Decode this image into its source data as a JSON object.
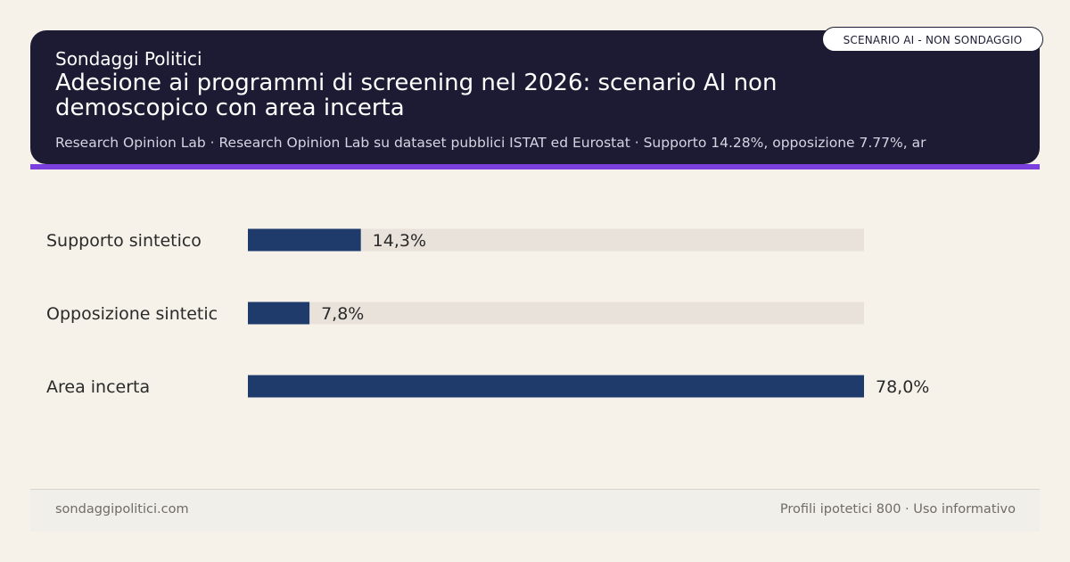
{
  "header": {
    "brand": "Sondaggi Politici",
    "title": "Adesione ai programmi di screening nel 2026: scenario AI non demoscopico con area incerta",
    "subtitle": "Research Opinion Lab · Research Opinion Lab su dataset pubblici ISTAT ed Eurostat · Supporto 14.28%, opposizione 7.77%, ar"
  },
  "badge": {
    "label": "SCENARIO AI - NON SONDAGGIO"
  },
  "footer": {
    "site": "sondaggipolitici.com",
    "note": "Profili ipotetici 800 · Uso informativo"
  },
  "colors": {
    "header_bg": "#1c1b33",
    "accent": "#7b3fe0",
    "bar": "#1f3b6b",
    "track": "#e9e2da",
    "text": "#2a2a2a",
    "background": "#f6f2ea"
  },
  "chart_data": {
    "type": "bar",
    "orientation": "horizontal",
    "categories": [
      "Supporto sintetico",
      "Opposizione sintetic",
      "Area incerta"
    ],
    "values": [
      14.3,
      7.8,
      78.0
    ],
    "value_labels": [
      "14,3%",
      "7,8%",
      "78,0%"
    ],
    "xlim": [
      0,
      78
    ],
    "grid": false
  }
}
